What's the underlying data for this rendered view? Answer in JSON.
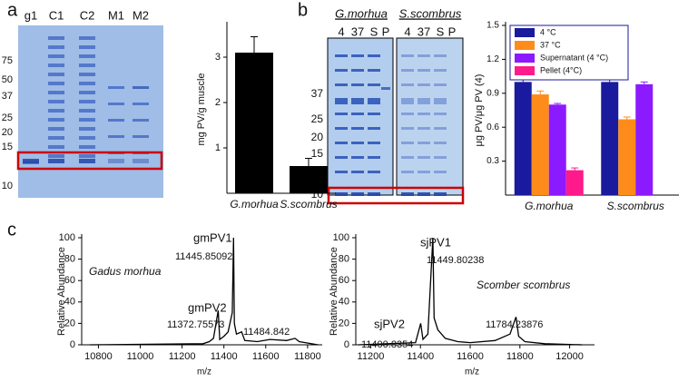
{
  "panel_labels": [
    "a",
    "b",
    "c"
  ],
  "gel_a": {
    "lanes": [
      "g1",
      "C1",
      "C2",
      "M1",
      "M2"
    ],
    "markers": [
      75,
      50,
      37,
      25,
      20,
      15,
      10
    ]
  },
  "gel_b": {
    "groups": [
      "G.morhua",
      "S.scombrus"
    ],
    "lanes": [
      "4",
      "37",
      "S",
      "P",
      "4",
      "37",
      "S",
      "P"
    ],
    "markers": [
      37,
      25,
      20,
      15,
      10
    ]
  },
  "chart_data": [
    {
      "type": "bar",
      "categories": [
        "G.morhua",
        "S.scombrus"
      ],
      "values": [
        3.1,
        0.6
      ],
      "errors": [
        0.35,
        0.17
      ],
      "color": "#000000",
      "ylabel": "mg PV/g muscle",
      "ylim": [
        0,
        3.7
      ],
      "yticks": [
        1,
        2,
        3
      ]
    },
    {
      "type": "bar",
      "categories": [
        "G.morhua",
        "S.scombrus"
      ],
      "ylabel": "μg PV/μg PV (4)",
      "ylim": [
        0,
        1.5
      ],
      "yticks": [
        0.3,
        0.6,
        0.9,
        1.2,
        1.5
      ],
      "legend": "top-left",
      "series": [
        {
          "name": "4 °C",
          "color": "#1a1a9e",
          "values": [
            1.0,
            1.0
          ],
          "errors": [
            0.03,
            0.02
          ]
        },
        {
          "name": "37 °C",
          "color": "#ff8c1a",
          "values": [
            0.89,
            0.67
          ],
          "errors": [
            0.03,
            0.02
          ]
        },
        {
          "name": "Supernatant (4 °C)",
          "color": "#8c1aff",
          "values": [
            0.8,
            0.98
          ],
          "errors": [
            0.01,
            0.02
          ]
        },
        {
          "name": "Pellet (4°C)",
          "color": "#ff1a8c",
          "values": [
            0.22,
            null
          ],
          "errors": [
            0.02,
            null
          ]
        }
      ]
    },
    {
      "type": "line",
      "x": [
        10760,
        11300,
        11330,
        11350,
        11372.76,
        11380,
        11400,
        11420,
        11440,
        11445.85,
        11450,
        11460,
        11484.84,
        11500,
        11560,
        11620,
        11700,
        11740,
        11760,
        11850
      ],
      "values": [
        0,
        1,
        3,
        6,
        32,
        5,
        8,
        12,
        30,
        100,
        20,
        10,
        12,
        4,
        3,
        5,
        4,
        6,
        3,
        0
      ],
      "color": "#000000",
      "xlabel": "m/z",
      "ylabel": "Relative Abundance",
      "xlim": [
        10720,
        11870
      ],
      "xticks": [
        10800,
        11000,
        11200,
        11400,
        11600,
        11800
      ],
      "ylim": [
        0,
        100
      ],
      "yticks": [
        0,
        20,
        40,
        60,
        80,
        100
      ],
      "annotations": [
        "gmPV1",
        "11445.85092",
        "Gadus morhua",
        "gmPV2",
        "11372.75573",
        "11484.842"
      ]
    },
    {
      "type": "line",
      "x": [
        11150,
        11380,
        11400.84,
        11410,
        11430,
        11449.8,
        11455,
        11470,
        11500,
        11550,
        11600,
        11700,
        11760,
        11784.24,
        11795,
        11820,
        11900,
        12050
      ],
      "values": [
        0,
        2,
        20,
        5,
        10,
        100,
        25,
        14,
        6,
        3,
        2,
        4,
        10,
        26,
        8,
        3,
        1,
        0
      ],
      "color": "#000000",
      "xlabel": "m/z",
      "ylabel": "Relative Abundance",
      "xlim": [
        11140,
        12100
      ],
      "xticks": [
        11200,
        11400,
        11600,
        11800,
        12000
      ],
      "ylim": [
        0,
        100
      ],
      "yticks": [
        0,
        20,
        40,
        60,
        80,
        100
      ],
      "annotations": [
        "sjPV1",
        "11449.80238",
        "Scomber scombrus",
        "sjPV2",
        "11400.8354",
        "11784.23876"
      ]
    }
  ]
}
